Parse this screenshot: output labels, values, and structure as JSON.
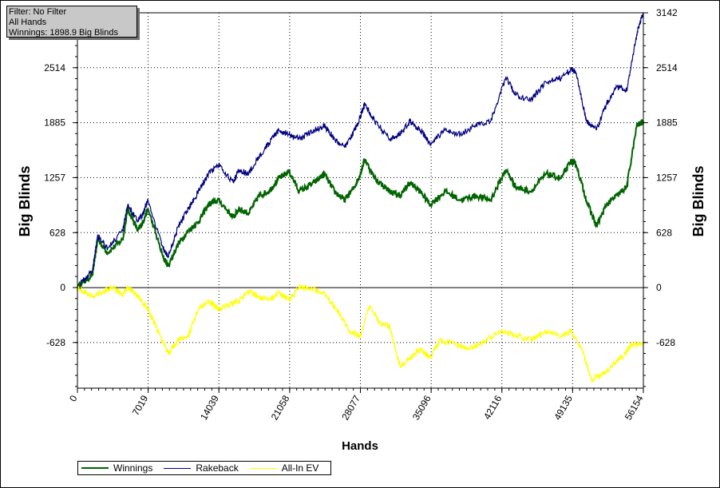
{
  "info": {
    "filter": "Filter: No Filter",
    "hands": "All Hands",
    "winnings": "Winnings: 1898.9 Big Blinds"
  },
  "chart_data": {
    "type": "line",
    "xlabel": "Hands",
    "ylabel": "Big Blinds",
    "xlim": [
      0,
      56154
    ],
    "ylim": [
      -1150,
      3142
    ],
    "x_ticks": [
      0,
      7019,
      14039,
      21058,
      28077,
      35096,
      42116,
      49135,
      56154
    ],
    "y_ticks": [
      -628,
      0,
      628,
      1257,
      1885,
      2514,
      3142
    ],
    "grid": true,
    "legend_position": "bottom-left",
    "series": [
      {
        "name": "Winnings",
        "color": "#006400",
        "x": [
          0,
          1500,
          2000,
          3000,
          4500,
          5000,
          6000,
          6500,
          7000,
          8500,
          9000,
          10000,
          11000,
          12000,
          13000,
          14000,
          15500,
          16000,
          17000,
          18000,
          19000,
          20000,
          21000,
          22000,
          23500,
          24500,
          25500,
          26500,
          27500,
          28077,
          28500,
          29500,
          31000,
          32000,
          33000,
          34000,
          35000,
          36500,
          38000,
          39500,
          41000,
          42500,
          43500,
          45000,
          46500,
          48000,
          49000,
          49500,
          50500,
          51500,
          52500,
          53500,
          54500,
          55500,
          56154
        ],
        "y": [
          0,
          150,
          550,
          400,
          550,
          900,
          650,
          750,
          900,
          350,
          250,
          500,
          650,
          750,
          950,
          1000,
          800,
          900,
          850,
          1050,
          1100,
          1250,
          1330,
          1100,
          1200,
          1300,
          1100,
          1000,
          1150,
          1300,
          1470,
          1250,
          1100,
          1050,
          1200,
          1100,
          950,
          1100,
          1000,
          1050,
          1000,
          1350,
          1150,
          1100,
          1300,
          1250,
          1450,
          1400,
          1000,
          700,
          950,
          1050,
          1150,
          1850,
          1898.9
        ]
      },
      {
        "name": "Rakeback",
        "color": "#000080",
        "x": [
          0,
          1500,
          2000,
          3000,
          4500,
          5000,
          6000,
          6500,
          7000,
          8500,
          9000,
          10000,
          11000,
          12000,
          13000,
          14000,
          15500,
          16000,
          17000,
          18000,
          19000,
          20000,
          21000,
          22000,
          23500,
          24500,
          25500,
          26500,
          27500,
          28077,
          28500,
          29500,
          31000,
          32000,
          33000,
          34000,
          35000,
          36500,
          38000,
          39500,
          41000,
          42500,
          43500,
          45000,
          46500,
          48000,
          49000,
          49500,
          50500,
          51500,
          52500,
          53500,
          54500,
          55500,
          56154
        ],
        "y": [
          0,
          200,
          600,
          450,
          650,
          950,
          750,
          850,
          1000,
          450,
          350,
          700,
          900,
          1100,
          1300,
          1400,
          1200,
          1350,
          1300,
          1500,
          1650,
          1800,
          1750,
          1700,
          1800,
          1850,
          1700,
          1600,
          1800,
          1950,
          2100,
          1900,
          1700,
          1750,
          1900,
          1800,
          1650,
          1800,
          1750,
          1850,
          1900,
          2400,
          2200,
          2150,
          2350,
          2400,
          2500,
          2450,
          1900,
          1800,
          2100,
          2300,
          2250,
          2900,
          3142
        ]
      },
      {
        "name": "All-In EV",
        "color": "#ffff00",
        "x": [
          0,
          1500,
          2500,
          3500,
          4500,
          5000,
          6000,
          7000,
          8000,
          9000,
          10000,
          11000,
          12000,
          13000,
          14000,
          15000,
          16000,
          17000,
          18000,
          19000,
          20000,
          21000,
          22000,
          23000,
          24500,
          26000,
          27000,
          28077,
          29000,
          30000,
          31000,
          32000,
          33000,
          34000,
          35000,
          36000,
          37500,
          39000,
          40500,
          42000,
          43500,
          45000,
          46500,
          48000,
          49000,
          50000,
          51000,
          52000,
          53000,
          54000,
          55000,
          56154
        ],
        "y": [
          0,
          -100,
          -50,
          0,
          -80,
          0,
          -100,
          -250,
          -500,
          -750,
          -600,
          -550,
          -250,
          -150,
          -250,
          -200,
          -150,
          -50,
          -100,
          -150,
          -50,
          -150,
          0,
          0,
          -50,
          -300,
          -500,
          -550,
          -200,
          -400,
          -450,
          -900,
          -800,
          -700,
          -800,
          -600,
          -650,
          -700,
          -600,
          -500,
          -550,
          -600,
          -500,
          -550,
          -500,
          -700,
          -1050,
          -1000,
          -900,
          -800,
          -650,
          -650
        ]
      }
    ]
  }
}
